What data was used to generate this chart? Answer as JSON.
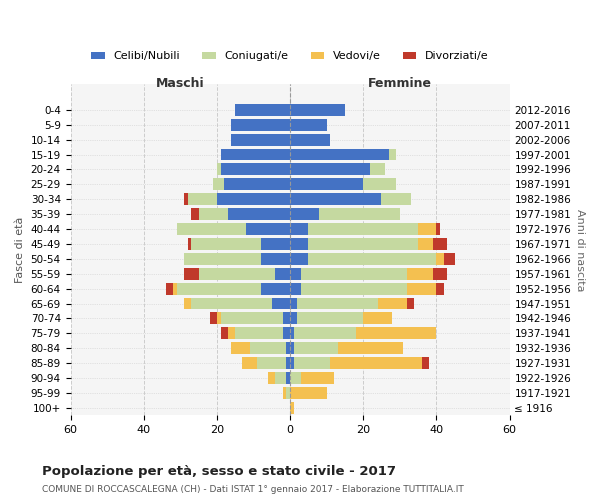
{
  "age_groups": [
    "100+",
    "95-99",
    "90-94",
    "85-89",
    "80-84",
    "75-79",
    "70-74",
    "65-69",
    "60-64",
    "55-59",
    "50-54",
    "45-49",
    "40-44",
    "35-39",
    "30-34",
    "25-29",
    "20-24",
    "15-19",
    "10-14",
    "5-9",
    "0-4"
  ],
  "birth_years": [
    "≤ 1916",
    "1917-1921",
    "1922-1926",
    "1927-1931",
    "1932-1936",
    "1937-1941",
    "1942-1946",
    "1947-1951",
    "1952-1956",
    "1957-1961",
    "1962-1966",
    "1967-1971",
    "1972-1976",
    "1977-1981",
    "1982-1986",
    "1987-1991",
    "1992-1996",
    "1997-2001",
    "2002-2006",
    "2007-2011",
    "2012-2016"
  ],
  "maschi_celibi": [
    0,
    0,
    1,
    1,
    1,
    2,
    2,
    5,
    8,
    4,
    8,
    8,
    12,
    17,
    20,
    18,
    19,
    19,
    16,
    16,
    15
  ],
  "maschi_coniugati": [
    0,
    1,
    3,
    8,
    10,
    13,
    17,
    22,
    23,
    21,
    21,
    19,
    19,
    8,
    8,
    3,
    1,
    0,
    0,
    0,
    0
  ],
  "maschi_vedovi": [
    0,
    1,
    2,
    4,
    5,
    2,
    1,
    2,
    1,
    0,
    0,
    0,
    0,
    0,
    0,
    0,
    0,
    0,
    0,
    0,
    0
  ],
  "maschi_divorziati": [
    0,
    0,
    0,
    0,
    0,
    2,
    2,
    0,
    2,
    4,
    0,
    1,
    0,
    2,
    1,
    0,
    0,
    0,
    0,
    0,
    0
  ],
  "femmine_celibi": [
    0,
    0,
    0,
    1,
    1,
    1,
    2,
    2,
    3,
    3,
    5,
    5,
    5,
    8,
    25,
    20,
    22,
    27,
    11,
    10,
    15
  ],
  "femmine_coniugati": [
    0,
    0,
    3,
    10,
    12,
    17,
    18,
    22,
    29,
    29,
    35,
    30,
    30,
    22,
    8,
    9,
    4,
    2,
    0,
    0,
    0
  ],
  "femmine_vedovi": [
    1,
    10,
    9,
    25,
    18,
    22,
    8,
    8,
    8,
    7,
    2,
    4,
    5,
    0,
    0,
    0,
    0,
    0,
    0,
    0,
    0
  ],
  "femmine_divorziati": [
    0,
    0,
    0,
    2,
    0,
    0,
    0,
    2,
    2,
    4,
    3,
    4,
    1,
    0,
    0,
    0,
    0,
    0,
    0,
    0,
    0
  ],
  "color_celibi": "#4472c4",
  "color_coniugati": "#c5d9a0",
  "color_vedovi": "#f4c050",
  "color_divorziati": "#c0392b",
  "title": "Popolazione per età, sesso e stato civile - 2017",
  "subtitle": "COMUNE DI ROCCASCALEGNA (CH) - Dati ISTAT 1° gennaio 2017 - Elaborazione TUTTITALIA.IT",
  "xlabel_left": "Maschi",
  "xlabel_right": "Femmine",
  "ylabel_left": "Fasce di età",
  "ylabel_right": "Anni di nascita",
  "xlim": 60,
  "bg_color": "#f5f5f5",
  "grid_color": "#cccccc"
}
